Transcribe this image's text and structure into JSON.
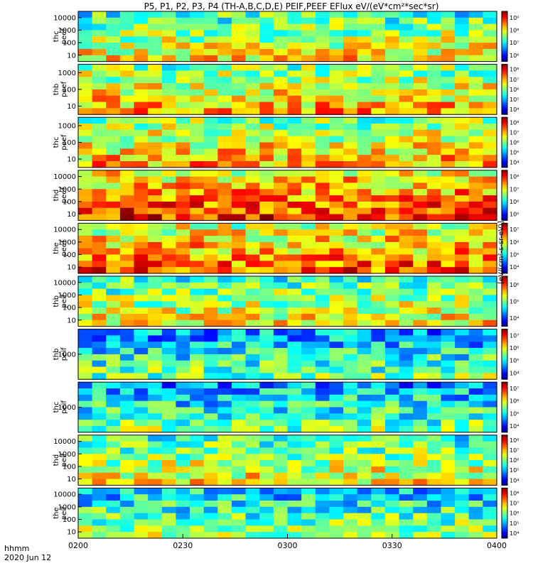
{
  "title": "P5, P1, P2, P3, P4 (TH-A,B,C,D,E) PEIF,PEEF EFlux eV/(eV*cm²*sec*sr)",
  "footer": {
    "time_label": "hhmm",
    "date_label": "2020 Jun 12"
  },
  "colorbar_unit_label": "[eV/(cm²-s-sr-eV)]",
  "chart_data": {
    "type": "heatmap",
    "title": "P5, P1, P2, P3, P4 (TH-A,B,C,D,E) PEIF,PEEF EFlux eV/(eV*cm²*sec*sr)",
    "x": {
      "ticks": [
        "0200",
        "0230",
        "0300",
        "0330",
        "0400"
      ],
      "range": [
        "0200",
        "0400"
      ]
    },
    "y_scale": "log",
    "panels": [
      {
        "label": "thc peef",
        "yticks": [
          "10",
          "100",
          "1000",
          "10000"
        ],
        "cbar_ticks": [
          "10⁶",
          "10⁷",
          "10⁸",
          "10⁹"
        ],
        "level": 0.55
      },
      {
        "label": "thb peef",
        "yticks": [
          "10",
          "100",
          "1000"
        ],
        "cbar_ticks": [
          "10⁴",
          "10⁵",
          "10⁶",
          "10⁷",
          "10⁸"
        ],
        "level": 0.62
      },
      {
        "label": "thc peef",
        "yticks": [
          "10",
          "100",
          "1000"
        ],
        "cbar_ticks": [
          "10⁴",
          "10⁵",
          "10⁶",
          "10⁷",
          "10⁸"
        ],
        "level": 0.62
      },
      {
        "label": "thd peef",
        "yticks": [
          "10",
          "100",
          "1000",
          "10000"
        ],
        "cbar_ticks": [
          "10⁵",
          "10⁶",
          "10⁷",
          "10⁸"
        ],
        "level": 0.75
      },
      {
        "label": "the peef",
        "yticks": [
          "10",
          "100",
          "1000",
          "10000"
        ],
        "cbar_ticks": [
          "10⁴",
          "10⁵",
          "10⁶",
          "10⁷"
        ],
        "level": 0.7
      },
      {
        "label": "thb peif",
        "yticks": [
          "10",
          "100",
          "1000",
          "10000"
        ],
        "cbar_ticks": [
          "10⁴",
          "10⁵",
          "10⁶"
        ],
        "level": 0.55
      },
      {
        "label": "thb peif",
        "yticks": [
          "1000"
        ],
        "cbar_ticks": [
          "10⁴",
          "10⁵",
          "10⁶",
          "10⁷"
        ],
        "level": 0.4
      },
      {
        "label": "thc peif",
        "yticks": [
          "1000"
        ],
        "cbar_ticks": [
          "10⁴",
          "10⁵",
          "10⁶",
          "10⁷"
        ],
        "level": 0.4
      },
      {
        "label": "thd peif",
        "yticks": [
          "10",
          "100",
          "1000",
          "10000"
        ],
        "cbar_ticks": [
          "10⁴",
          "10⁵",
          "10⁶",
          "10⁷",
          "10⁸"
        ],
        "level": 0.55
      },
      {
        "label": "the peif",
        "yticks": [
          "10",
          "100",
          "1000",
          "10000"
        ],
        "cbar_ticks": [
          "10⁴",
          "10⁵",
          "10⁶",
          "10⁷",
          "10⁸"
        ],
        "level": 0.45
      }
    ]
  }
}
